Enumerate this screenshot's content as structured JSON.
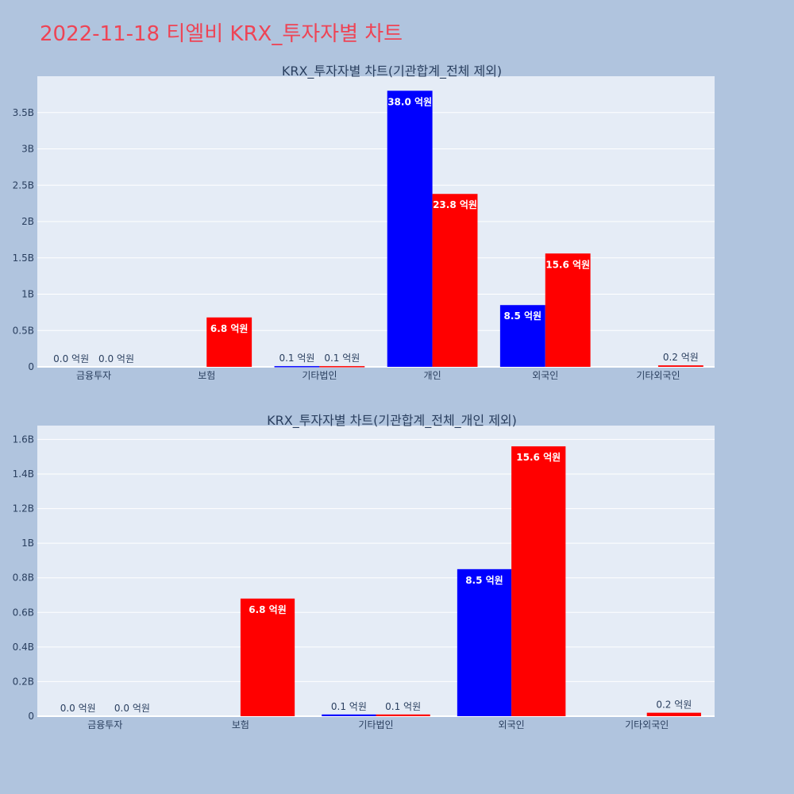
{
  "title": "2022-11-18 티엘비 KRX_투자자별 차트",
  "colors": {
    "buy": "#0000ff",
    "sell": "#ff0000",
    "plot_bg": "#e5ecf6",
    "page_bg": "#b0c4de"
  },
  "chart_data": [
    {
      "type": "bar",
      "title": "KRX_투자자별 차트(기관합계_전체 제외)",
      "categories": [
        "금융투자",
        "보험",
        "기타법인",
        "개인",
        "외국인",
        "기타외국인"
      ],
      "ylim": [
        0,
        4000000000
      ],
      "yticks": [
        0,
        500000000,
        1000000000,
        1500000000,
        2000000000,
        2500000000,
        3000000000,
        3500000000
      ],
      "ytick_labels": [
        "0",
        "0.5B",
        "1B",
        "1.5B",
        "2B",
        "2.5B",
        "3B",
        "3.5B"
      ],
      "grid": true,
      "series": [
        {
          "color": "#0000ff",
          "values": [
            0,
            0,
            10000000,
            3800000000,
            850000000,
            0
          ],
          "labels": [
            "0.0 억원",
            "",
            "0.1 억원",
            "38.0 억원",
            "8.5 억원",
            ""
          ]
        },
        {
          "color": "#ff0000",
          "values": [
            0,
            680000000,
            10000000,
            2380000000,
            1560000000,
            20000000
          ],
          "labels": [
            "0.0 억원",
            "6.8 억원",
            "0.1 억원",
            "23.8 억원",
            "15.6 억원",
            "0.2 억원"
          ]
        }
      ]
    },
    {
      "type": "bar",
      "title": "KRX_투자자별 차트(기관합계_전체_개인 제외)",
      "categories": [
        "금융투자",
        "보험",
        "기타법인",
        "외국인",
        "기타외국인"
      ],
      "ylim": [
        0,
        1680000000
      ],
      "yticks": [
        0,
        200000000,
        400000000,
        600000000,
        800000000,
        1000000000,
        1200000000,
        1400000000,
        1600000000
      ],
      "ytick_labels": [
        "0",
        "0.2B",
        "0.4B",
        "0.6B",
        "0.8B",
        "1B",
        "1.2B",
        "1.4B",
        "1.6B"
      ],
      "grid": true,
      "series": [
        {
          "color": "#0000ff",
          "values": [
            0,
            0,
            10000000,
            850000000,
            0
          ],
          "labels": [
            "0.0 억원",
            "",
            "0.1 억원",
            "8.5 억원",
            ""
          ]
        },
        {
          "color": "#ff0000",
          "values": [
            0,
            680000000,
            10000000,
            1560000000,
            20000000
          ],
          "labels": [
            "0.0 억원",
            "6.8 억원",
            "0.1 억원",
            "15.6 억원",
            "0.2 억원"
          ]
        }
      ]
    }
  ]
}
